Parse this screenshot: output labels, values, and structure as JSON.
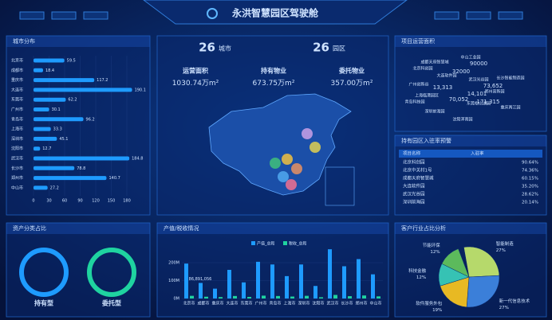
{
  "header": {
    "title": "永洪智慧园区驾驶舱"
  },
  "stats": {
    "cities": {
      "value": 26,
      "label": "城市"
    },
    "parks": {
      "value": 26,
      "label": "园区"
    },
    "metrics": [
      {
        "label": "运营面积",
        "value": 1030.74,
        "unit": "万m²"
      },
      {
        "label": "持有物业",
        "value": 673.75,
        "unit": "万m²"
      },
      {
        "label": "委托物业",
        "value": 357.0,
        "unit": "万m²"
      }
    ]
  },
  "word_cloud": {
    "title": "项目运营面积",
    "words": [
      "中山工业园",
      "成都天府智慧城",
      "北京科创园",
      "大连软件园",
      "武汉光谷园",
      "广州创新谷",
      "长沙智能制造园",
      "上海临港园区",
      "郑州高新园",
      "青岛科技园",
      "深圳前海园",
      "东莞松山湖园",
      "重庆两江园",
      "沈阳浑南园"
    ],
    "numbers": [
      "90000",
      "32000",
      "13,313",
      "73,652",
      "14,101",
      "70,052",
      "171,315"
    ]
  },
  "table": {
    "title": "持有园区入驻率预警",
    "header": [
      "项目名称",
      "入驻率"
    ],
    "rows": [
      [
        "北京科创园",
        "90.64%"
      ],
      [
        "北京中关村1号",
        "74.36%"
      ],
      [
        "成都天府智慧城",
        "60.15%"
      ]
    ],
    "alerts": [
      [
        "大连软件园",
        "35.20%"
      ],
      [
        "武汉光谷园",
        "28.62%"
      ],
      [
        "深圳前海园",
        "20.14%"
      ]
    ]
  },
  "assets": {
    "title": "资产分类占比",
    "items": [
      {
        "name": "持有型",
        "color": "#1e9bff"
      },
      {
        "name": "委托型",
        "color": "#1fd3a0"
      }
    ]
  },
  "chart_data": [
    {
      "type": "hbar",
      "title": "城市分布",
      "categories": [
        "北京市",
        "成都市",
        "重庆市",
        "大连市",
        "东莞市",
        "广州市",
        "青岛市",
        "上海市",
        "深圳市",
        "沈阳市",
        "武汉市",
        "长沙市",
        "郑州市",
        "中山市"
      ],
      "values": [
        59.5,
        18.4,
        117.2,
        190.1,
        62.2,
        30.1,
        96.2,
        33.3,
        45.1,
        12.7,
        184.8,
        78.8,
        140.7,
        27.2
      ],
      "color": "#1e9bff",
      "xlim": [
        0,
        200
      ],
      "xticks": [
        0,
        30,
        60,
        90,
        120,
        150,
        180
      ]
    },
    {
      "type": "bar",
      "title": "产值/税收情况",
      "categories": [
        "北京市",
        "成都市",
        "重庆市",
        "大连市",
        "东莞市",
        "广州市",
        "青岛市",
        "上海市",
        "深圳市",
        "沈阳市",
        "武汉市",
        "长沙市",
        "郑州市",
        "中山市"
      ],
      "series": [
        {
          "name": "产值_总和",
          "color": "#1e9bff",
          "values": [
            195,
            86.891056,
            55,
            160,
            90,
            205,
            190,
            125,
            190,
            70,
            275,
            180,
            220,
            135
          ],
          "value_labels": [
            null,
            "86,891,056",
            null,
            null,
            null,
            null,
            null,
            null,
            null,
            null,
            null,
            null,
            null,
            null
          ]
        },
        {
          "name": "税收_总和",
          "color": "#1fd3a0",
          "values": [
            15,
            10,
            8,
            14,
            9,
            16,
            14,
            11,
            15,
            7,
            20,
            13,
            17,
            12
          ]
        }
      ],
      "ylim": [
        0,
        280
      ],
      "yticks": [
        {
          "value": 0,
          "label": "0M"
        },
        {
          "value": 100,
          "label": "100M"
        },
        {
          "value": 200,
          "label": "200M"
        }
      ]
    },
    {
      "type": "pie",
      "title": "客户行业占比分析",
      "categories": [
        "智能制造",
        "新一代信息技术",
        "软件服务外包",
        "科技金融",
        "节能环保"
      ],
      "values": [
        27,
        27,
        19,
        12,
        12
      ],
      "value_labels": [
        "27%",
        "27%",
        "19%",
        "12%",
        "12%"
      ],
      "colors": [
        "#b6d96b",
        "#3b7fd9",
        "#e8b923",
        "#36c2b4",
        "#5cba5c"
      ]
    }
  ]
}
